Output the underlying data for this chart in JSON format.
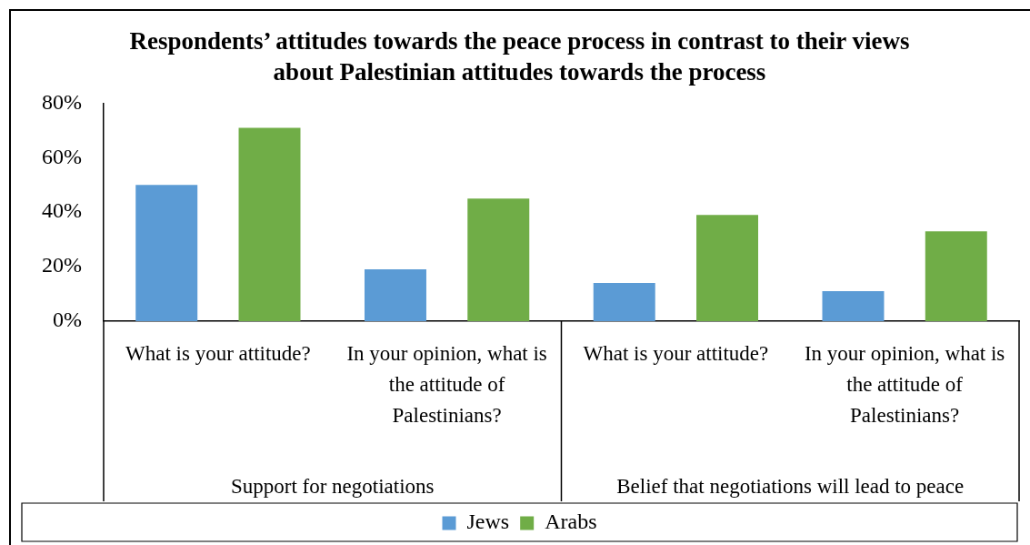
{
  "chart_data": {
    "type": "bar",
    "title": "Respondents’ attitudes towards the peace process in contrast to their views about Palestinian attitudes towards the process",
    "categories": [
      "What is your attitude?",
      "In your opinion, what is the attitude of Palestinians?",
      "What is your attitude?",
      "In your opinion, what is the attitude of Palestinians?"
    ],
    "series": [
      {
        "name": "Jews",
        "color": "#5b9bd5",
        "values": [
          50,
          19,
          14,
          11
        ]
      },
      {
        "name": "Arabs",
        "color": "#70ad47",
        "values": [
          71,
          45,
          39,
          33
        ]
      }
    ],
    "annotations": [
      "Support for negotiations",
      "Belief that negotiations will lead to peace"
    ],
    "ylim": [
      0,
      80
    ],
    "yticks": [
      {
        "value": 0,
        "label": "0%"
      },
      {
        "value": 20,
        "label": "20%"
      },
      {
        "value": 40,
        "label": "40%"
      },
      {
        "value": 60,
        "label": "60%"
      },
      {
        "value": 80,
        "label": "80%"
      }
    ],
    "grid": false,
    "legend": "bottom"
  }
}
